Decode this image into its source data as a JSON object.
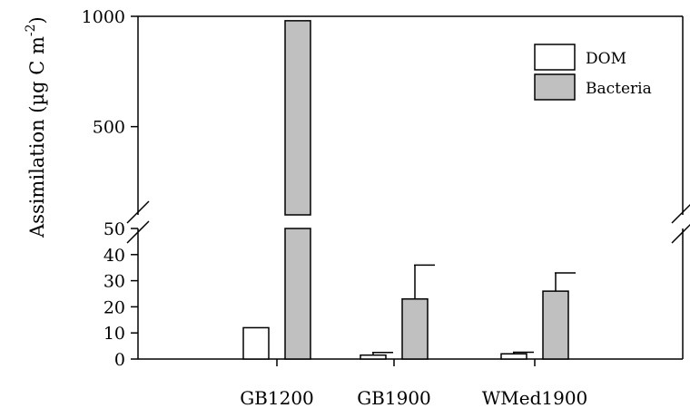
{
  "chart_data": {
    "type": "bar",
    "xlabel": "",
    "ylabel": "Assimilation (µg C m",
    "ylabel_superscript": "-2",
    "ylabel_close": ")",
    "categories": [
      "GB1200",
      "GB1900",
      "WMed1900"
    ],
    "series": [
      {
        "name": "DOM",
        "color": "#ffffff",
        "values": [
          12,
          1.5,
          2
        ],
        "errors": [
          0,
          1,
          0.6
        ]
      },
      {
        "name": "Bacteria",
        "color": "#c0c0c0",
        "values": [
          980,
          23,
          26
        ],
        "errors": [
          0,
          13,
          7
        ]
      }
    ],
    "y_axis": {
      "broken": true,
      "lower_segment": {
        "range": [
          0,
          50
        ],
        "ticks": [
          "0",
          "10",
          "20",
          "30",
          "40",
          "50"
        ]
      },
      "upper_segment": {
        "range": [
          100,
          1000
        ],
        "ticks": [
          "500",
          "1000"
        ]
      }
    },
    "legend_position": "top-right",
    "grid": false
  }
}
